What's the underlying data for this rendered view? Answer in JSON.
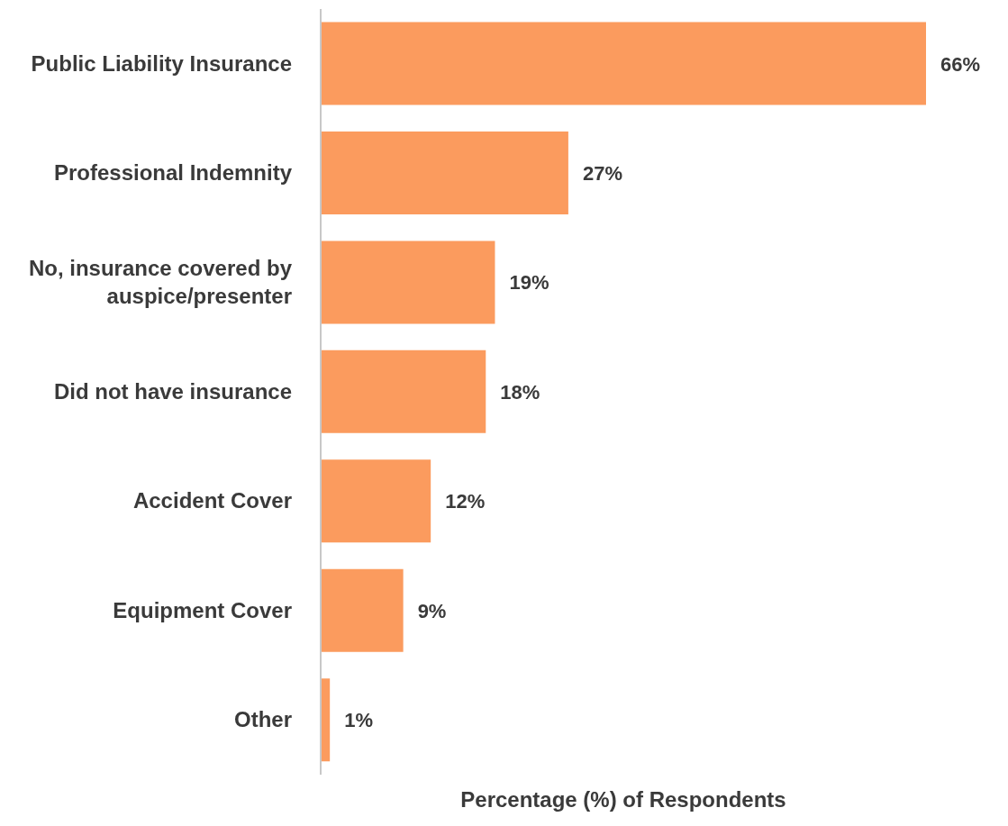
{
  "chart_data": {
    "type": "bar",
    "orientation": "horizontal",
    "xlabel": "Percentage (%) of Respondents",
    "categories": [
      "Public Liability Insurance",
      "Professional Indemnity",
      "No, insurance covered by auspice/presenter",
      "Did not have insurance",
      "Accident Cover",
      "Equipment Cover",
      "Other"
    ],
    "values": [
      66,
      27,
      19,
      18,
      12,
      9,
      1
    ],
    "value_labels": [
      "66%",
      "27%",
      "19%",
      "18%",
      "12%",
      "9%",
      "1%"
    ],
    "color": "#fb9b5e",
    "grid": false
  }
}
